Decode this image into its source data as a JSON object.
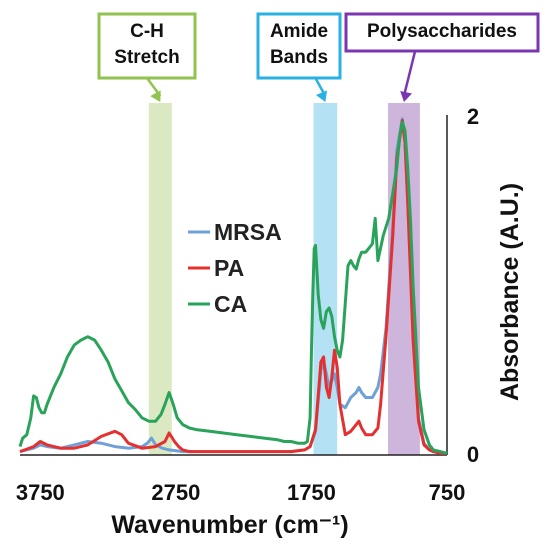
{
  "chart_data": {
    "type": "line",
    "xlabel": "Wavenumber (cm⁻¹)",
    "ylabel": "Absorbance (A.U.)",
    "x_reversed": true,
    "xlim": [
      3900,
      750
    ],
    "ylim": [
      0,
      2
    ],
    "x_ticks": [
      3750,
      2750,
      1750,
      750
    ],
    "y_ticks": [
      0,
      2
    ],
    "legend_position": "center-left",
    "series": [
      {
        "name": "MRSA",
        "color": "#6fa0d8",
        "x": [
          3900,
          3800,
          3750,
          3700,
          3600,
          3500,
          3400,
          3300,
          3200,
          3100,
          3000,
          2960,
          2930,
          2900,
          2850,
          2800,
          2700,
          2600,
          2500,
          2400,
          2300,
          2200,
          2100,
          2000,
          1900,
          1800,
          1760,
          1720,
          1700,
          1680,
          1660,
          1640,
          1620,
          1600,
          1580,
          1560,
          1540,
          1500,
          1460,
          1420,
          1400,
          1380,
          1350,
          1300,
          1260,
          1240,
          1200,
          1150,
          1120,
          1080,
          1060,
          1040,
          1000,
          960,
          920,
          880,
          850,
          800,
          750
        ],
        "y": [
          0.02,
          0.04,
          0.06,
          0.05,
          0.04,
          0.06,
          0.08,
          0.07,
          0.05,
          0.04,
          0.05,
          0.07,
          0.1,
          0.06,
          0.04,
          0.03,
          0.02,
          0.02,
          0.02,
          0.02,
          0.02,
          0.02,
          0.02,
          0.02,
          0.02,
          0.03,
          0.05,
          0.14,
          0.32,
          0.5,
          0.55,
          0.48,
          0.4,
          0.44,
          0.48,
          0.4,
          0.3,
          0.28,
          0.34,
          0.37,
          0.4,
          0.37,
          0.34,
          0.34,
          0.4,
          0.48,
          0.75,
          1.35,
          1.8,
          1.99,
          1.85,
          1.5,
          0.7,
          0.22,
          0.07,
          0.03,
          0.02,
          0.01,
          0.01
        ]
      },
      {
        "name": "PA",
        "color": "#e53030",
        "x": [
          3900,
          3800,
          3750,
          3700,
          3600,
          3500,
          3400,
          3300,
          3200,
          3150,
          3100,
          3000,
          2900,
          2830,
          2800,
          2760,
          2730,
          2700,
          2650,
          2600,
          2500,
          2400,
          2300,
          2200,
          2100,
          2000,
          1900,
          1800,
          1760,
          1720,
          1700,
          1680,
          1660,
          1640,
          1620,
          1600,
          1580,
          1560,
          1540,
          1500,
          1460,
          1420,
          1400,
          1380,
          1350,
          1300,
          1260,
          1240,
          1200,
          1150,
          1120,
          1080,
          1060,
          1040,
          1000,
          960,
          920,
          880,
          850,
          800,
          750
        ],
        "y": [
          0.02,
          0.05,
          0.08,
          0.06,
          0.04,
          0.04,
          0.06,
          0.11,
          0.14,
          0.12,
          0.07,
          0.04,
          0.05,
          0.08,
          0.13,
          0.08,
          0.05,
          0.03,
          0.02,
          0.02,
          0.02,
          0.02,
          0.02,
          0.02,
          0.02,
          0.02,
          0.02,
          0.03,
          0.05,
          0.15,
          0.35,
          0.55,
          0.58,
          0.4,
          0.34,
          0.46,
          0.62,
          0.52,
          0.3,
          0.12,
          0.14,
          0.18,
          0.2,
          0.16,
          0.12,
          0.12,
          0.16,
          0.3,
          0.7,
          1.3,
          1.75,
          1.98,
          1.85,
          1.5,
          0.68,
          0.2,
          0.06,
          0.03,
          0.02,
          0.01,
          0.01
        ]
      },
      {
        "name": "CA",
        "color": "#2aa35a",
        "x": [
          3900,
          3880,
          3850,
          3820,
          3800,
          3780,
          3760,
          3740,
          3720,
          3700,
          3650,
          3600,
          3550,
          3500,
          3450,
          3400,
          3350,
          3300,
          3250,
          3200,
          3150,
          3100,
          3050,
          3000,
          2950,
          2900,
          2860,
          2830,
          2800,
          2770,
          2740,
          2700,
          2650,
          2600,
          2500,
          2400,
          2300,
          2200,
          2100,
          2000,
          1950,
          1900,
          1850,
          1800,
          1780,
          1760,
          1750,
          1740,
          1730,
          1720,
          1700,
          1680,
          1660,
          1640,
          1620,
          1600,
          1580,
          1560,
          1540,
          1520,
          1500,
          1480,
          1460,
          1440,
          1420,
          1400,
          1380,
          1350,
          1300,
          1280,
          1260,
          1220,
          1180,
          1150,
          1120,
          1100,
          1080,
          1060,
          1040,
          1020,
          1000,
          980,
          960,
          920,
          880,
          850,
          800,
          750
        ],
        "y": [
          0.05,
          0.1,
          0.12,
          0.22,
          0.35,
          0.34,
          0.28,
          0.25,
          0.25,
          0.3,
          0.4,
          0.48,
          0.58,
          0.65,
          0.68,
          0.7,
          0.68,
          0.62,
          0.55,
          0.45,
          0.38,
          0.31,
          0.27,
          0.22,
          0.2,
          0.2,
          0.24,
          0.3,
          0.37,
          0.3,
          0.22,
          0.18,
          0.16,
          0.15,
          0.14,
          0.13,
          0.12,
          0.11,
          0.1,
          0.09,
          0.08,
          0.08,
          0.07,
          0.07,
          0.08,
          0.22,
          0.6,
          0.95,
          1.22,
          1.24,
          0.95,
          0.8,
          0.75,
          0.85,
          0.87,
          0.82,
          0.7,
          0.62,
          0.58,
          0.68,
          0.9,
          1.12,
          1.15,
          1.12,
          1.1,
          1.16,
          1.2,
          1.2,
          1.25,
          1.4,
          1.15,
          1.3,
          1.4,
          1.55,
          1.7,
          1.88,
          1.97,
          1.92,
          1.7,
          1.4,
          1.0,
          0.7,
          0.4,
          0.15,
          0.06,
          0.03,
          0.02,
          0.01
        ]
      }
    ],
    "regions": [
      {
        "label": "C-H\nStretch",
        "lines": [
          "C-H",
          "Stretch"
        ],
        "range": [
          2950,
          2780
        ],
        "fill": "#dbe9c2",
        "border": "#92c250"
      },
      {
        "label": "Amide\nBands",
        "lines": [
          "Amide",
          "Bands"
        ],
        "range": [
          1735,
          1560
        ],
        "fill": "#b4e1f4",
        "border": "#2ab0e2"
      },
      {
        "label": "Polysaccharides",
        "lines": [
          "Polysaccharides"
        ],
        "range": [
          1185,
          950
        ],
        "fill": "#cdb5dc",
        "border": "#7b35b0"
      }
    ]
  },
  "labels": {
    "x_tick_3750": "3750",
    "x_tick_2750": "2750",
    "x_tick_1750": "1750",
    "x_tick_750": "750",
    "y_tick_0": "0",
    "y_tick_2": "2"
  }
}
